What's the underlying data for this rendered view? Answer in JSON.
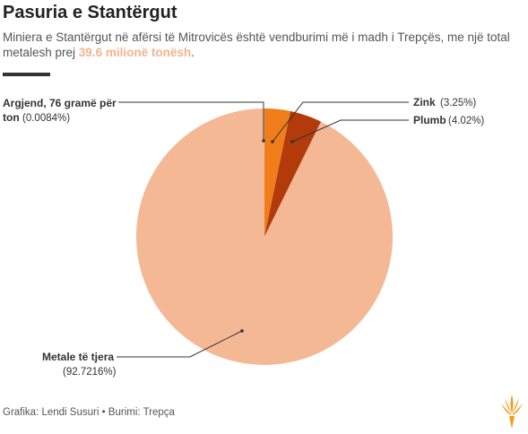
{
  "header": {
    "title": "Pasuria e Stantërgut",
    "subtitle_text": "Miniera e Stantërgut në afërsi të Mitrovicës është vendburimi më i madh i Trepçës, me një total metalesh prej ",
    "subtitle_highlight": "39.6 milionë tonësh",
    "subtitle_end": "."
  },
  "chart_data": {
    "type": "pie",
    "slices": [
      {
        "label": "Zink",
        "percent_label": "(3.25%)",
        "value": 3.25,
        "color": "#f07d1a"
      },
      {
        "label": "Plumb",
        "percent_label": "(4.02%)",
        "value": 4.02,
        "color": "#b33a0a"
      },
      {
        "label": "Metale të tjera",
        "percent_label": "(92.7216%)",
        "value": 92.7216,
        "color": "#f5b895"
      },
      {
        "label": "Argjend, 76 gramë për ton",
        "percent_label": "(0.0084%)",
        "value": 0.0084,
        "color": "#f5b895"
      }
    ]
  },
  "footer": {
    "credit": "Grafika: Lendi Susuri • Burimi: Trepça"
  },
  "logo": {
    "icon": "torch-logo-icon",
    "color": "#f29a1f"
  }
}
